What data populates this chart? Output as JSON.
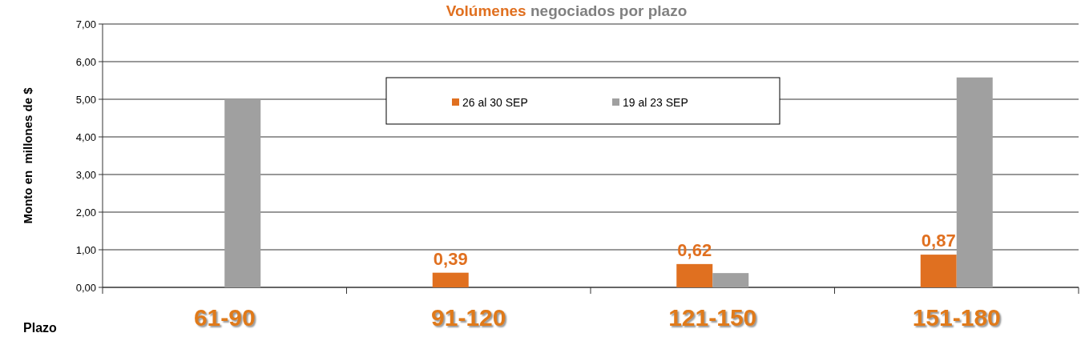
{
  "chart_data": {
    "type": "bar",
    "title": "Volúmenes negociados por plazo",
    "xlabel": "Plazo",
    "ylabel": "Monto en  millones de $",
    "categories": [
      "61-90",
      "91-120",
      "121-150",
      "151-180"
    ],
    "series": [
      {
        "name": "26 al 30 SEP",
        "color": "#e07020",
        "values": [
          null,
          0.39,
          0.62,
          0.87
        ],
        "value_labels": [
          null,
          "0,39",
          "0,62",
          "0,87"
        ]
      },
      {
        "name": "19 al 23 SEP",
        "color": "#a0a0a0",
        "values": [
          5.0,
          null,
          0.38,
          5.58
        ]
      }
    ],
    "ylim": [
      0,
      7
    ],
    "yticks": [
      {
        "value": 0,
        "label": "0,00"
      },
      {
        "value": 1,
        "label": "1,00"
      },
      {
        "value": 2,
        "label": "2,00"
      },
      {
        "value": 3,
        "label": "3,00"
      },
      {
        "value": 4,
        "label": "4,00"
      },
      {
        "value": 5,
        "label": "5,00"
      },
      {
        "value": 6,
        "label": "6,00"
      },
      {
        "value": 7,
        "label": "7,00"
      }
    ],
    "grid": "y",
    "legend": "top"
  }
}
